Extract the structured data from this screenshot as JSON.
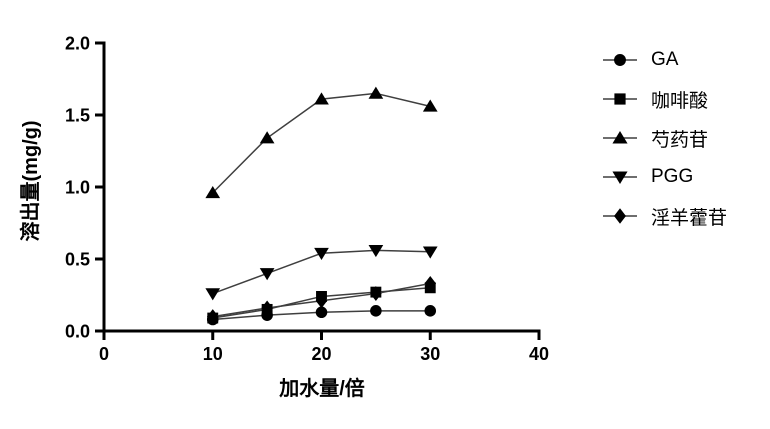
{
  "chart_data": {
    "type": "line",
    "title": "",
    "xlabel": "加水量/倍",
    "ylabel": "溶出量(mg/g)",
    "xlim": [
      0,
      40
    ],
    "ylim": [
      0.0,
      2.0
    ],
    "x_ticks": [
      "0",
      "10",
      "20",
      "30",
      "40"
    ],
    "x_tick_values": [
      0,
      10,
      20,
      30,
      40
    ],
    "y_ticks": [
      "0.0",
      "0.5",
      "1.0",
      "1.5",
      "2.0"
    ],
    "y_tick_values": [
      0.0,
      0.5,
      1.0,
      1.5,
      2.0
    ],
    "grid": false,
    "legend_position": "right",
    "x": [
      10,
      15,
      20,
      25,
      30
    ],
    "series": [
      {
        "name": "GA",
        "marker": "circle",
        "values": [
          0.08,
          0.11,
          0.13,
          0.14,
          0.14
        ]
      },
      {
        "name": "咖啡酸",
        "marker": "square",
        "values": [
          0.09,
          0.15,
          0.24,
          0.27,
          0.3
        ]
      },
      {
        "name": "芍药苷",
        "marker": "triangle-up",
        "values": [
          0.96,
          1.34,
          1.61,
          1.65,
          1.56
        ]
      },
      {
        "name": "PGG",
        "marker": "triangle-down",
        "values": [
          0.26,
          0.4,
          0.54,
          0.56,
          0.55
        ]
      },
      {
        "name": "淫羊藿苷",
        "marker": "diamond",
        "values": [
          0.1,
          0.16,
          0.21,
          0.26,
          0.33
        ]
      }
    ],
    "colors": {
      "background": "#ffffff",
      "axis": "#000000",
      "line": "#3f3f3f",
      "marker": "#000000",
      "text": "#000000"
    }
  }
}
